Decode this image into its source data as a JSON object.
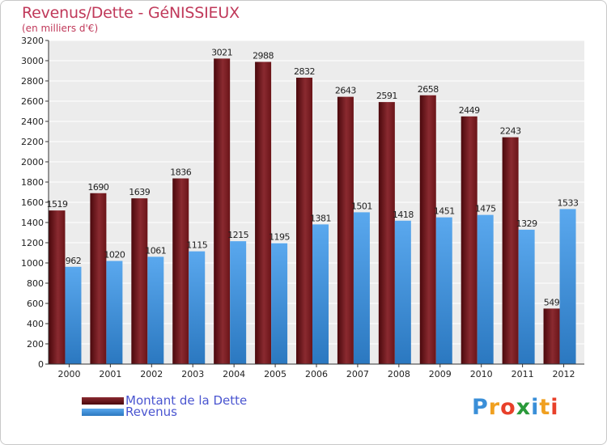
{
  "header": {
    "title": "Revenus/Dette - GéNISSIEUX",
    "subtitle": "(en milliers d'€)"
  },
  "chart_data": {
    "type": "bar",
    "categories": [
      "2000",
      "2001",
      "2002",
      "2003",
      "2004",
      "2005",
      "2006",
      "2007",
      "2008",
      "2009",
      "2010",
      "2011",
      "2012"
    ],
    "series": [
      {
        "name": "Montant de la Dette",
        "color": "#6e1418",
        "values": [
          1519,
          1690,
          1639,
          1836,
          3021,
          2988,
          2832,
          2643,
          2591,
          2658,
          2449,
          2243,
          549
        ]
      },
      {
        "name": "Revenus",
        "color": "#3f8fdc",
        "values": [
          962,
          1020,
          1061,
          1115,
          1215,
          1195,
          1381,
          1501,
          1418,
          1451,
          1475,
          1329,
          1533
        ]
      }
    ],
    "ylim": [
      0,
      3200
    ],
    "yticks": [
      0,
      200,
      400,
      600,
      800,
      1000,
      1200,
      1400,
      1600,
      1800,
      2000,
      2200,
      2400,
      2600,
      2800,
      3000,
      3200
    ],
    "grid": true,
    "legend": "bottom-left"
  },
  "legend": [
    {
      "label": "Montant de la Dette",
      "color": "#6e1418"
    },
    {
      "label": "Revenus",
      "color": "#3f8fdc"
    }
  ],
  "logo": {
    "letters": [
      "P",
      "r",
      "o",
      "x",
      "i",
      "t",
      "i"
    ],
    "colors": [
      "#3a8fd8",
      "#f0a020",
      "#e8402a",
      "#2a9a3a",
      "#3a8fd8",
      "#f0a020",
      "#e8402a"
    ]
  }
}
